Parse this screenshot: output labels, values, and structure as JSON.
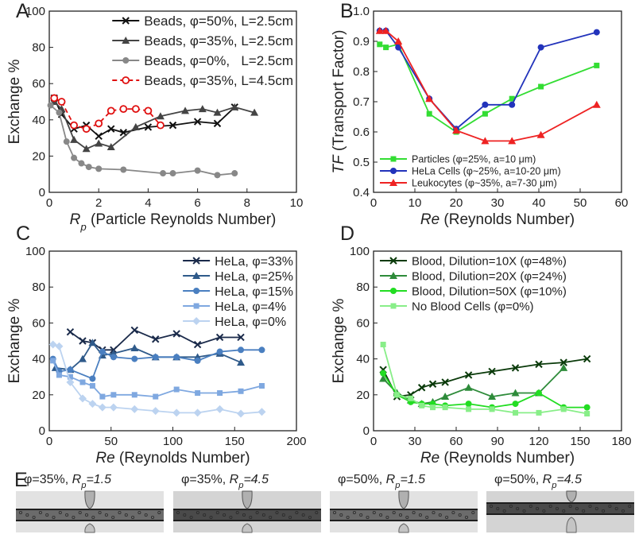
{
  "panels": [
    "A",
    "B",
    "C",
    "D",
    "E"
  ],
  "chart_data": [
    {
      "type": "line",
      "ylabel": "Exchange %",
      "xlabel": {
        "symbol": "R",
        "sub": "p",
        "text": " (Particle Reynolds Number)"
      },
      "xlim": [
        0,
        10
      ],
      "xticks": [
        0,
        2,
        4,
        6,
        8,
        10
      ],
      "ylim": [
        0,
        100
      ],
      "yticks": [
        0,
        20,
        40,
        60,
        80,
        100
      ],
      "legend": "upper right",
      "series": [
        {
          "name": "Beads, φ=50%, L=2.5cm",
          "color": "#111111",
          "marker": "x",
          "x": [
            0.2,
            0.5,
            1.0,
            1.5,
            2.0,
            2.5,
            3.0,
            4.0,
            5.0,
            6.0,
            6.8,
            7.5
          ],
          "values": [
            52,
            43,
            35,
            37,
            31,
            35,
            33,
            36,
            37,
            39,
            38,
            47
          ]
        },
        {
          "name": "Beads, φ=35%, L=2.5cm",
          "color": "#444444",
          "marker": "triangle",
          "x": [
            0.2,
            0.5,
            1.0,
            1.5,
            2.0,
            2.5,
            3.5,
            4.5,
            5.5,
            6.2,
            6.8,
            7.5,
            8.3
          ],
          "values": [
            50,
            46,
            29,
            24,
            27,
            25,
            36,
            42,
            45,
            46,
            44,
            47,
            44
          ]
        },
        {
          "name": "Beads, φ=0%,   L=2.5cm",
          "color": "#888888",
          "marker": "circle",
          "x": [
            0.05,
            0.4,
            0.7,
            1.0,
            1.3,
            1.6,
            2.0,
            3.0,
            4.6,
            5.0,
            6.0,
            6.8,
            7.5
          ],
          "values": [
            48,
            44,
            28,
            19,
            16,
            14,
            13,
            12.5,
            10.5,
            10.5,
            12,
            9.5,
            10.5
          ]
        },
        {
          "name": "Beads, φ=35%, L=4.5cm",
          "color": "#e01010",
          "marker": "open-circle",
          "dash": true,
          "x": [
            0.2,
            0.5,
            1.0,
            1.5,
            2.0,
            2.5,
            3.0,
            3.5,
            4.0,
            4.5
          ],
          "values": [
            52,
            50,
            37,
            35,
            38,
            45,
            46,
            46,
            45,
            37
          ]
        }
      ]
    },
    {
      "type": "line",
      "ylabel": {
        "symbol": "TF",
        "text": " (Transport Factor)"
      },
      "xlabel": {
        "symbol": "Re",
        "text": " (Reynolds Number)"
      },
      "xlim": [
        0,
        60
      ],
      "xticks": [
        0,
        10,
        20,
        30,
        40,
        50,
        60
      ],
      "ylim": [
        0.4,
        1.0
      ],
      "yticks": [
        0.4,
        0.5,
        0.6,
        0.7,
        0.8,
        0.9,
        {
          "value": 1.0,
          "label": "1.0"
        }
      ],
      "legend": "lower left",
      "series": [
        {
          "name": "Particles (φ=25%, a=10 μm)",
          "color": "#33dd33",
          "marker": "square",
          "x": [
            1.5,
            3,
            6,
            13.5,
            20,
            27,
            33.5,
            40.5,
            54
          ],
          "values": [
            0.89,
            0.88,
            0.89,
            0.66,
            0.6,
            0.66,
            0.71,
            0.75,
            0.82
          ]
        },
        {
          "name": "HeLa Cells (φ~25%, a=10-20 μm)",
          "color": "#2233bb",
          "marker": "circle",
          "x": [
            1.5,
            3,
            6,
            13.5,
            20,
            27,
            33.5,
            40.5,
            54
          ],
          "values": [
            0.935,
            0.935,
            0.88,
            0.71,
            0.61,
            0.69,
            0.69,
            0.88,
            0.93
          ]
        },
        {
          "name": "Leukocytes (φ~35%, a=7-30 μm)",
          "color": "#ee2222",
          "marker": "triangle",
          "x": [
            1.5,
            3,
            6,
            13.5,
            20,
            27,
            33.5,
            40.5,
            54
          ],
          "values": [
            0.935,
            0.935,
            0.9,
            0.71,
            0.605,
            0.57,
            0.57,
            0.59,
            0.69
          ]
        }
      ]
    },
    {
      "type": "line",
      "ylabel": "Exchange %",
      "xlabel": {
        "symbol": "Re",
        "text": " (Reynolds Number)"
      },
      "xlim": [
        0,
        200
      ],
      "xticks": [
        0,
        50,
        100,
        150,
        200
      ],
      "ylim": [
        0,
        100
      ],
      "yticks": [
        0,
        20,
        40,
        60,
        80,
        100
      ],
      "legend": "upper right",
      "series": [
        {
          "name": "HeLa, φ=33%",
          "color": "#1a2a4a",
          "marker": "x",
          "x": [
            17,
            27,
            35,
            43,
            52,
            69,
            86,
            103,
            120,
            138,
            155
          ],
          "values": [
            55,
            50,
            49,
            45,
            45,
            56,
            51,
            54,
            48,
            52,
            52
          ]
        },
        {
          "name": "HeLa, φ=25%",
          "color": "#2f5a8a",
          "marker": "triangle",
          "x": [
            5,
            17,
            27,
            35,
            43,
            52,
            69,
            86,
            103,
            120,
            138,
            155
          ],
          "values": [
            35,
            34,
            40,
            49,
            42,
            43,
            46,
            41,
            41,
            41,
            43,
            38
          ]
        },
        {
          "name": "HeLa, φ=15%",
          "color": "#4a7fc0",
          "marker": "circle",
          "x": [
            3,
            8,
            17,
            35,
            43,
            52,
            69,
            86,
            103,
            120,
            138,
            155,
            172
          ],
          "values": [
            40,
            33,
            34,
            29,
            44,
            41,
            40,
            41,
            41,
            39,
            44,
            45,
            45
          ]
        },
        {
          "name": "HeLa, φ=4%",
          "color": "#7fa8e0",
          "marker": "square",
          "x": [
            3,
            8,
            17,
            27,
            35,
            43,
            52,
            69,
            86,
            103,
            120,
            138,
            155,
            172
          ],
          "values": [
            39,
            31,
            30,
            27,
            25,
            19,
            20,
            20,
            19,
            23,
            21,
            21,
            22,
            25
          ]
        },
        {
          "name": "HeLa, φ=0%",
          "color": "#bcd3f0",
          "marker": "diamond",
          "x": [
            3,
            8,
            17,
            27,
            35,
            43,
            52,
            69,
            86,
            103,
            120,
            138,
            155,
            172
          ],
          "values": [
            48,
            47,
            27,
            18,
            15,
            13,
            13,
            12,
            11,
            10,
            10,
            12,
            9.5,
            10.5
          ]
        }
      ]
    },
    {
      "type": "line",
      "ylabel": "Exchange %",
      "xlabel": {
        "symbol": "Re",
        "text": " (Reynolds Number)"
      },
      "xlim": [
        0,
        180
      ],
      "xticks": [
        0,
        30,
        60,
        90,
        120,
        150,
        180
      ],
      "ylim": [
        0,
        100
      ],
      "yticks": [
        0,
        20,
        40,
        60,
        80,
        100
      ],
      "legend": "upper left",
      "series": [
        {
          "name": "Blood, Dilution=10X (φ=48%)",
          "color": "#0a3a0a",
          "marker": "x",
          "x": [
            7,
            17,
            27,
            35,
            43,
            52,
            69,
            86,
            103,
            120,
            138,
            155
          ],
          "values": [
            34,
            19,
            20,
            24,
            26,
            27,
            31,
            33,
            35,
            37,
            38,
            40
          ]
        },
        {
          "name": "Blood, Dilution=20X (φ=24%)",
          "color": "#2e8b3a",
          "marker": "triangle",
          "x": [
            7,
            17,
            27,
            35,
            43,
            52,
            69,
            86,
            103,
            120,
            138
          ],
          "values": [
            29,
            21,
            17,
            15,
            16,
            19,
            24,
            19,
            21,
            21,
            35
          ]
        },
        {
          "name": "Blood, Dilution=50X (φ=10%)",
          "color": "#22dd22",
          "marker": "circle",
          "x": [
            7,
            17,
            27,
            35,
            43,
            52,
            69,
            86,
            103,
            120,
            138,
            155
          ],
          "values": [
            32,
            20,
            16,
            15,
            15,
            14,
            15,
            13,
            15,
            21,
            13,
            13
          ]
        },
        {
          "name": "No Blood Cells (φ=0%)",
          "color": "#88ee88",
          "marker": "square",
          "x": [
            7,
            17,
            27,
            35,
            43,
            52,
            69,
            86,
            103,
            120,
            138,
            155
          ],
          "values": [
            48,
            20,
            18,
            14,
            13,
            13,
            12,
            12,
            10,
            10,
            12,
            9.5
          ]
        }
      ]
    }
  ],
  "images": [
    {
      "text": "φ=35%, ",
      "symbol": "R",
      "sub": "p",
      "rest": "=1.5"
    },
    {
      "text": "φ=35%, ",
      "symbol": "R",
      "sub": "p",
      "rest": "=4.5"
    },
    {
      "text": "φ=50%, ",
      "symbol": "R",
      "sub": "p",
      "rest": "=1.5"
    },
    {
      "text": "φ=50%, ",
      "symbol": "R",
      "sub": "p",
      "rest": "=4.5"
    }
  ]
}
